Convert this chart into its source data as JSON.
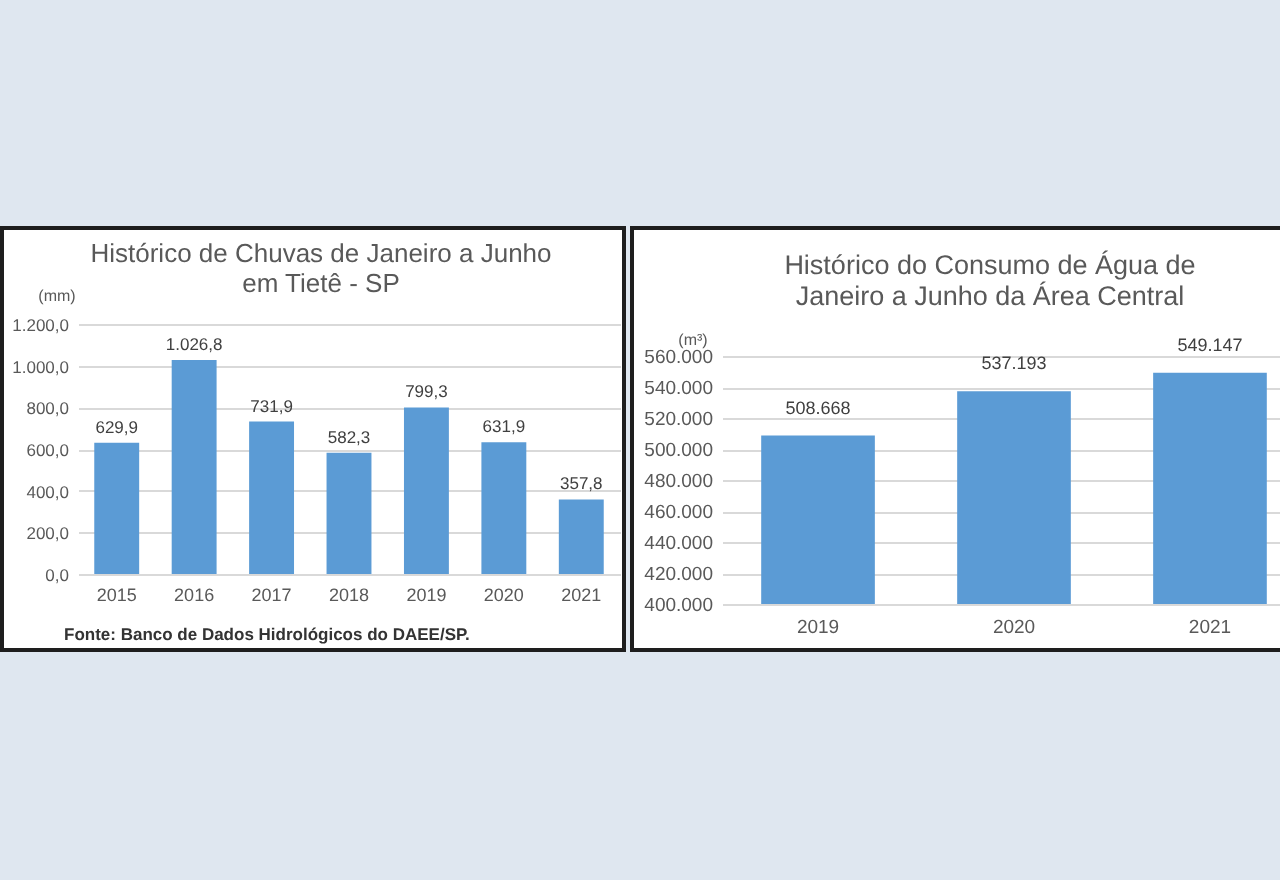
{
  "chart_data": [
    {
      "type": "bar",
      "title": "Histórico de Chuvas de Janeiro a Junho\nem Tietê - SP",
      "ylabel": "(mm)",
      "annotations": [
        "Fonte: Banco de Dados Hidrológicos do DAEE/SP."
      ],
      "categories": [
        "2015",
        "2016",
        "2017",
        "2018",
        "2019",
        "2020",
        "2021"
      ],
      "values": [
        629.9,
        1026.8,
        731.9,
        582.3,
        799.3,
        631.9,
        357.8
      ],
      "value_labels": [
        "629,9",
        "1.026,8",
        "731,9",
        "582,3",
        "799,3",
        "631,9",
        "357,8"
      ],
      "color": "#5b9bd5",
      "ylim": [
        0,
        1200
      ],
      "yticks": [
        {
          "value": 0,
          "label": "0,0"
        },
        {
          "value": 200,
          "label": "200,0"
        },
        {
          "value": 400,
          "label": "400,0"
        },
        {
          "value": 600,
          "label": "600,0"
        },
        {
          "value": 800,
          "label": "800,0"
        },
        {
          "value": 1000,
          "label": "1.000,0"
        },
        {
          "value": 1200,
          "label": "1.200,0"
        }
      ],
      "grid": "y"
    },
    {
      "type": "bar",
      "title": "Histórico do Consumo de Água de\nJaneiro a Junho da Área Central",
      "ylabel": "(m³)",
      "categories": [
        "2019",
        "2020",
        "2021"
      ],
      "values": [
        508668,
        537193,
        549147
      ],
      "value_labels": [
        "508.668",
        "537.193",
        "549.147"
      ],
      "color": "#5b9bd5",
      "ylim": [
        400000,
        560000
      ],
      "yticks": [
        {
          "value": 400000,
          "label": "400.000"
        },
        {
          "value": 420000,
          "label": "420.000"
        },
        {
          "value": 440000,
          "label": "440.000"
        },
        {
          "value": 460000,
          "label": "460.000"
        },
        {
          "value": 480000,
          "label": "480.000"
        },
        {
          "value": 500000,
          "label": "500.000"
        },
        {
          "value": 520000,
          "label": "520.000"
        },
        {
          "value": 540000,
          "label": "540.000"
        },
        {
          "value": 560000,
          "label": "560.000"
        }
      ],
      "grid": "y"
    }
  ]
}
